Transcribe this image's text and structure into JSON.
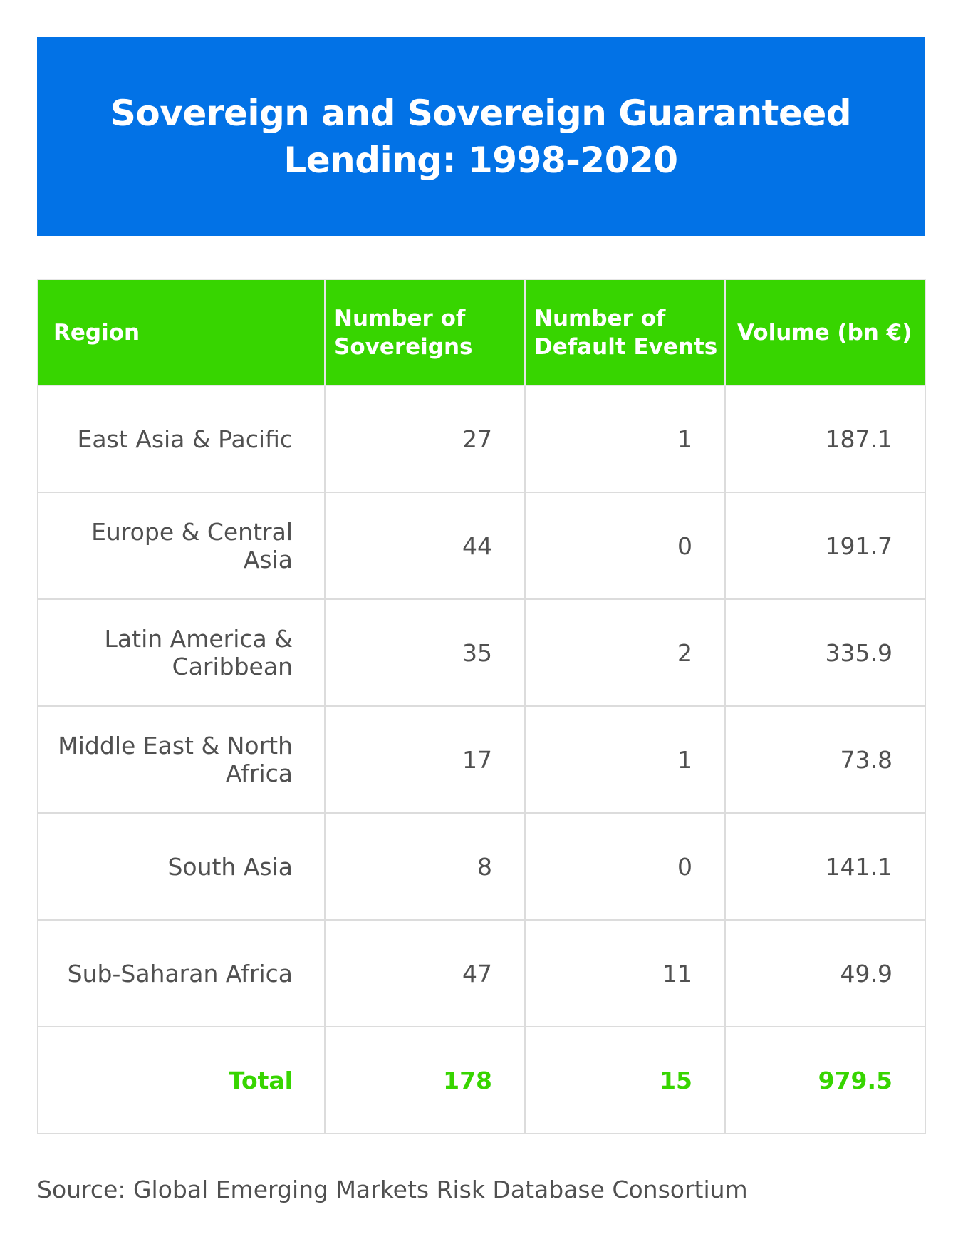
{
  "title": "Sovereign and Sovereign Guaranteed Lending: 1998-2020",
  "colors": {
    "banner": "#0272e6",
    "header": "#37d500",
    "total": "#37d500",
    "text": "#505050",
    "border": "#dcdcdc"
  },
  "source": "Source: Global Emerging Markets Risk Database Consortium",
  "chart_data": {
    "type": "table",
    "title": "Sovereign and Sovereign Guaranteed Lending: 1998-2020",
    "columns": [
      "Region",
      "Number of Sovereigns",
      "Number of Default Events",
      "Volume (bn €)"
    ],
    "rows": [
      [
        "East Asia & Pacific",
        "27",
        "1",
        "187.1"
      ],
      [
        "Europe & Central Asia",
        "44",
        "0",
        "191.7"
      ],
      [
        "Latin America & Caribbean",
        "35",
        "2",
        "335.9"
      ],
      [
        "Middle East & North Africa",
        "17",
        "1",
        "73.8"
      ],
      [
        "South Asia",
        "8",
        "0",
        "141.1"
      ],
      [
        "Sub-Saharan Africa",
        "47",
        "11",
        "49.9"
      ]
    ],
    "total": [
      "Total",
      "178",
      "15",
      "979.5"
    ]
  }
}
